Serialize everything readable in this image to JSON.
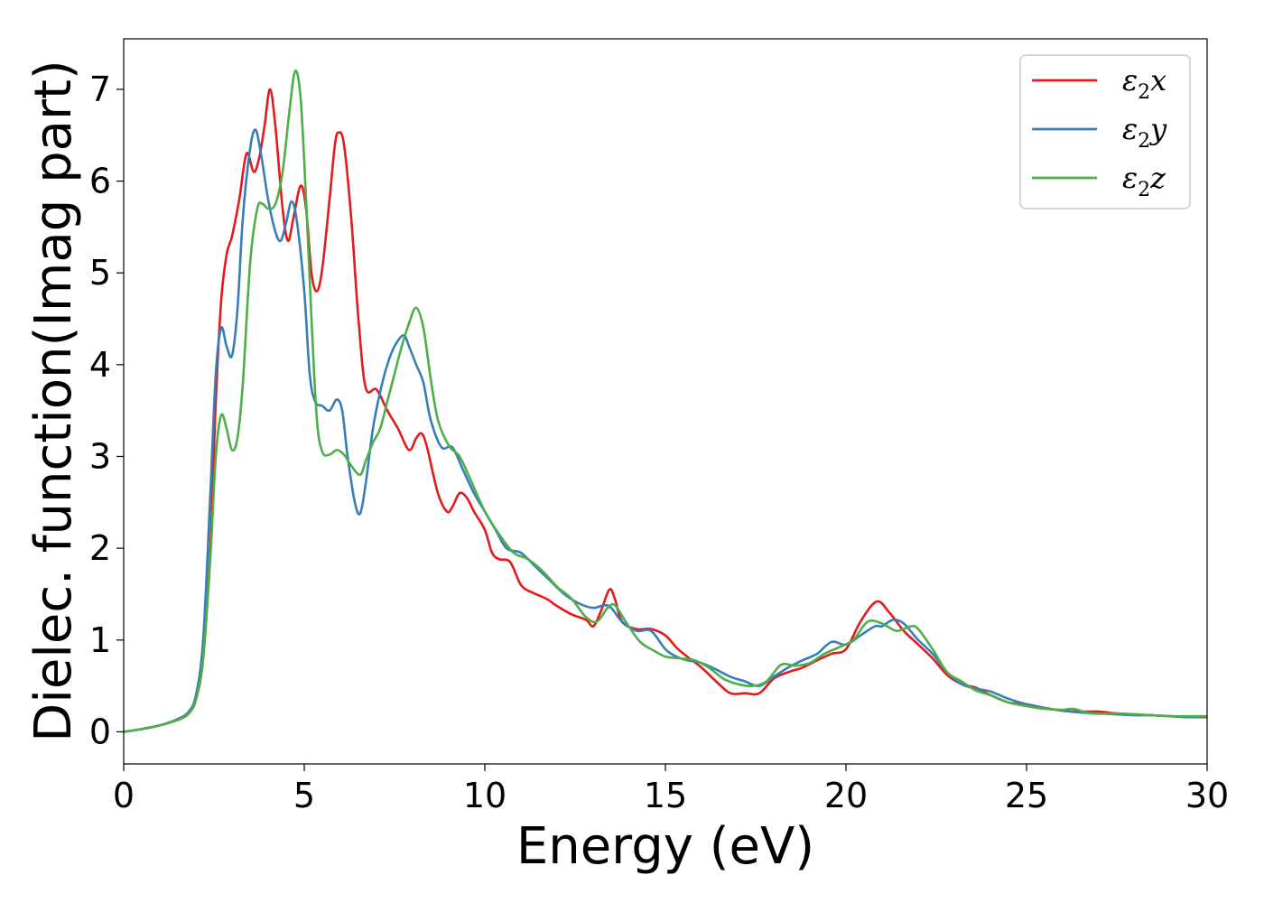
{
  "chart_data": {
    "type": "line",
    "title": "",
    "xlabel": "Energy (eV)",
    "ylabel": "Dielec. function(Imag part)",
    "xlim": [
      0,
      30
    ],
    "ylim": [
      -0.35,
      7.55
    ],
    "xticks": [
      0,
      5,
      10,
      15,
      20,
      25,
      30
    ],
    "yticks": [
      0,
      1,
      2,
      3,
      4,
      5,
      6,
      7
    ],
    "grid": false,
    "legend_position": "top-right",
    "series": [
      {
        "name": "ε₂x",
        "label_main": "ε",
        "label_sub": "2",
        "label_axis": "x",
        "color": "#e41a1c",
        "points": [
          [
            0,
            0
          ],
          [
            0.5,
            0.03
          ],
          [
            1.0,
            0.07
          ],
          [
            1.5,
            0.13
          ],
          [
            1.8,
            0.2
          ],
          [
            2.0,
            0.35
          ],
          [
            2.2,
            0.8
          ],
          [
            2.4,
            2.0
          ],
          [
            2.55,
            3.6
          ],
          [
            2.7,
            4.7
          ],
          [
            2.85,
            5.2
          ],
          [
            3.0,
            5.4
          ],
          [
            3.2,
            5.8
          ],
          [
            3.4,
            6.3
          ],
          [
            3.6,
            6.1
          ],
          [
            3.75,
            6.25
          ],
          [
            3.9,
            6.6
          ],
          [
            4.05,
            7.0
          ],
          [
            4.2,
            6.6
          ],
          [
            4.4,
            5.7
          ],
          [
            4.55,
            5.35
          ],
          [
            4.7,
            5.6
          ],
          [
            4.9,
            5.95
          ],
          [
            5.05,
            5.7
          ],
          [
            5.2,
            5.0
          ],
          [
            5.35,
            4.8
          ],
          [
            5.5,
            5.05
          ],
          [
            5.7,
            5.8
          ],
          [
            5.85,
            6.4
          ],
          [
            5.95,
            6.53
          ],
          [
            6.1,
            6.4
          ],
          [
            6.3,
            5.6
          ],
          [
            6.5,
            4.5
          ],
          [
            6.7,
            3.75
          ],
          [
            7.0,
            3.73
          ],
          [
            7.3,
            3.5
          ],
          [
            7.6,
            3.3
          ],
          [
            7.9,
            3.07
          ],
          [
            8.1,
            3.2
          ],
          [
            8.25,
            3.25
          ],
          [
            8.4,
            3.1
          ],
          [
            8.7,
            2.6
          ],
          [
            8.95,
            2.4
          ],
          [
            9.1,
            2.45
          ],
          [
            9.3,
            2.6
          ],
          [
            9.5,
            2.55
          ],
          [
            9.7,
            2.4
          ],
          [
            10.0,
            2.2
          ],
          [
            10.2,
            1.95
          ],
          [
            10.4,
            1.88
          ],
          [
            10.7,
            1.85
          ],
          [
            11.0,
            1.6
          ],
          [
            11.3,
            1.52
          ],
          [
            11.7,
            1.45
          ],
          [
            12.0,
            1.37
          ],
          [
            12.4,
            1.28
          ],
          [
            12.8,
            1.22
          ],
          [
            13.0,
            1.15
          ],
          [
            13.2,
            1.3
          ],
          [
            13.45,
            1.55
          ],
          [
            13.6,
            1.45
          ],
          [
            13.8,
            1.2
          ],
          [
            14.2,
            1.12
          ],
          [
            14.6,
            1.12
          ],
          [
            15.0,
            1.05
          ],
          [
            15.3,
            0.92
          ],
          [
            15.6,
            0.82
          ],
          [
            16.0,
            0.7
          ],
          [
            16.4,
            0.55
          ],
          [
            16.8,
            0.42
          ],
          [
            17.2,
            0.42
          ],
          [
            17.6,
            0.42
          ],
          [
            18.0,
            0.58
          ],
          [
            18.4,
            0.65
          ],
          [
            18.8,
            0.7
          ],
          [
            19.2,
            0.78
          ],
          [
            19.6,
            0.85
          ],
          [
            20.0,
            0.9
          ],
          [
            20.4,
            1.2
          ],
          [
            20.85,
            1.42
          ],
          [
            21.2,
            1.3
          ],
          [
            21.6,
            1.1
          ],
          [
            22.0,
            0.95
          ],
          [
            22.4,
            0.8
          ],
          [
            22.8,
            0.62
          ],
          [
            23.2,
            0.52
          ],
          [
            23.6,
            0.48
          ],
          [
            24.0,
            0.4
          ],
          [
            24.5,
            0.32
          ],
          [
            25.0,
            0.3
          ],
          [
            25.5,
            0.26
          ],
          [
            26.0,
            0.23
          ],
          [
            26.5,
            0.22
          ],
          [
            27.0,
            0.22
          ],
          [
            27.5,
            0.2
          ],
          [
            28.0,
            0.19
          ],
          [
            28.5,
            0.18
          ],
          [
            29.0,
            0.17
          ],
          [
            29.5,
            0.16
          ],
          [
            30.0,
            0.16
          ]
        ]
      },
      {
        "name": "ε₂y",
        "label_main": "ε",
        "label_sub": "2",
        "label_axis": "y",
        "color": "#377eb8",
        "points": [
          [
            0,
            0
          ],
          [
            0.5,
            0.03
          ],
          [
            1.0,
            0.07
          ],
          [
            1.5,
            0.14
          ],
          [
            1.8,
            0.22
          ],
          [
            2.0,
            0.4
          ],
          [
            2.2,
            1.0
          ],
          [
            2.4,
            2.6
          ],
          [
            2.55,
            3.9
          ],
          [
            2.7,
            4.4
          ],
          [
            2.85,
            4.2
          ],
          [
            3.0,
            4.1
          ],
          [
            3.15,
            4.6
          ],
          [
            3.3,
            5.6
          ],
          [
            3.5,
            6.35
          ],
          [
            3.65,
            6.56
          ],
          [
            3.8,
            6.3
          ],
          [
            4.0,
            5.8
          ],
          [
            4.2,
            5.45
          ],
          [
            4.35,
            5.35
          ],
          [
            4.5,
            5.55
          ],
          [
            4.65,
            5.78
          ],
          [
            4.8,
            5.55
          ],
          [
            5.0,
            4.8
          ],
          [
            5.15,
            3.9
          ],
          [
            5.3,
            3.6
          ],
          [
            5.5,
            3.55
          ],
          [
            5.7,
            3.5
          ],
          [
            5.9,
            3.62
          ],
          [
            6.05,
            3.5
          ],
          [
            6.2,
            3.0
          ],
          [
            6.4,
            2.5
          ],
          [
            6.55,
            2.38
          ],
          [
            6.7,
            2.7
          ],
          [
            6.9,
            3.3
          ],
          [
            7.1,
            3.7
          ],
          [
            7.3,
            4.0
          ],
          [
            7.5,
            4.2
          ],
          [
            7.75,
            4.32
          ],
          [
            7.9,
            4.2
          ],
          [
            8.1,
            4.0
          ],
          [
            8.3,
            3.8
          ],
          [
            8.5,
            3.4
          ],
          [
            8.8,
            3.1
          ],
          [
            9.1,
            3.1
          ],
          [
            9.4,
            2.85
          ],
          [
            9.7,
            2.6
          ],
          [
            10.0,
            2.4
          ],
          [
            10.3,
            2.2
          ],
          [
            10.6,
            2.0
          ],
          [
            11.0,
            1.95
          ],
          [
            11.4,
            1.8
          ],
          [
            11.8,
            1.65
          ],
          [
            12.2,
            1.5
          ],
          [
            12.6,
            1.4
          ],
          [
            13.0,
            1.35
          ],
          [
            13.3,
            1.38
          ],
          [
            13.5,
            1.35
          ],
          [
            13.8,
            1.2
          ],
          [
            14.2,
            1.1
          ],
          [
            14.6,
            1.1
          ],
          [
            15.0,
            0.9
          ],
          [
            15.3,
            0.82
          ],
          [
            15.6,
            0.78
          ],
          [
            16.0,
            0.75
          ],
          [
            16.4,
            0.68
          ],
          [
            16.8,
            0.6
          ],
          [
            17.2,
            0.55
          ],
          [
            17.6,
            0.5
          ],
          [
            18.0,
            0.6
          ],
          [
            18.4,
            0.7
          ],
          [
            18.8,
            0.78
          ],
          [
            19.2,
            0.85
          ],
          [
            19.6,
            0.98
          ],
          [
            20.0,
            0.95
          ],
          [
            20.4,
            1.05
          ],
          [
            20.8,
            1.15
          ],
          [
            21.0,
            1.15
          ],
          [
            21.3,
            1.22
          ],
          [
            21.6,
            1.18
          ],
          [
            22.0,
            1.0
          ],
          [
            22.4,
            0.85
          ],
          [
            22.8,
            0.65
          ],
          [
            23.2,
            0.52
          ],
          [
            23.6,
            0.47
          ],
          [
            24.0,
            0.44
          ],
          [
            24.5,
            0.36
          ],
          [
            25.0,
            0.3
          ],
          [
            25.5,
            0.26
          ],
          [
            26.0,
            0.23
          ],
          [
            26.5,
            0.21
          ],
          [
            27.0,
            0.2
          ],
          [
            27.5,
            0.19
          ],
          [
            28.0,
            0.18
          ],
          [
            28.5,
            0.18
          ],
          [
            29.0,
            0.17
          ],
          [
            29.5,
            0.16
          ],
          [
            30.0,
            0.17
          ]
        ]
      },
      {
        "name": "ε₂z",
        "label_main": "ε",
        "label_sub": "2",
        "label_axis": "z",
        "color": "#4daf4a",
        "points": [
          [
            0,
            0
          ],
          [
            0.5,
            0.03
          ],
          [
            1.0,
            0.07
          ],
          [
            1.5,
            0.13
          ],
          [
            1.8,
            0.2
          ],
          [
            2.0,
            0.35
          ],
          [
            2.2,
            0.8
          ],
          [
            2.4,
            1.9
          ],
          [
            2.55,
            3.0
          ],
          [
            2.7,
            3.45
          ],
          [
            2.85,
            3.3
          ],
          [
            3.0,
            3.07
          ],
          [
            3.15,
            3.2
          ],
          [
            3.3,
            3.8
          ],
          [
            3.5,
            5.1
          ],
          [
            3.7,
            5.7
          ],
          [
            3.85,
            5.75
          ],
          [
            4.0,
            5.7
          ],
          [
            4.2,
            5.75
          ],
          [
            4.4,
            6.1
          ],
          [
            4.6,
            6.8
          ],
          [
            4.75,
            7.2
          ],
          [
            4.9,
            6.9
          ],
          [
            5.05,
            5.8
          ],
          [
            5.2,
            4.5
          ],
          [
            5.35,
            3.4
          ],
          [
            5.5,
            3.05
          ],
          [
            5.7,
            3.02
          ],
          [
            5.9,
            3.07
          ],
          [
            6.1,
            3.02
          ],
          [
            6.3,
            2.9
          ],
          [
            6.55,
            2.8
          ],
          [
            6.7,
            2.95
          ],
          [
            6.9,
            3.15
          ],
          [
            7.1,
            3.3
          ],
          [
            7.3,
            3.6
          ],
          [
            7.5,
            3.9
          ],
          [
            7.7,
            4.2
          ],
          [
            7.9,
            4.45
          ],
          [
            8.1,
            4.62
          ],
          [
            8.3,
            4.4
          ],
          [
            8.5,
            3.85
          ],
          [
            8.7,
            3.4
          ],
          [
            9.0,
            3.12
          ],
          [
            9.3,
            3.0
          ],
          [
            9.6,
            2.75
          ],
          [
            10.0,
            2.4
          ],
          [
            10.4,
            2.15
          ],
          [
            10.8,
            1.95
          ],
          [
            11.2,
            1.88
          ],
          [
            11.6,
            1.75
          ],
          [
            12.0,
            1.58
          ],
          [
            12.4,
            1.45
          ],
          [
            12.8,
            1.25
          ],
          [
            13.1,
            1.2
          ],
          [
            13.4,
            1.35
          ],
          [
            13.6,
            1.38
          ],
          [
            13.9,
            1.2
          ],
          [
            14.3,
            0.98
          ],
          [
            14.7,
            0.88
          ],
          [
            15.0,
            0.82
          ],
          [
            15.4,
            0.8
          ],
          [
            15.8,
            0.78
          ],
          [
            16.2,
            0.7
          ],
          [
            16.6,
            0.58
          ],
          [
            17.0,
            0.52
          ],
          [
            17.4,
            0.5
          ],
          [
            17.8,
            0.55
          ],
          [
            18.2,
            0.73
          ],
          [
            18.6,
            0.72
          ],
          [
            19.0,
            0.75
          ],
          [
            19.4,
            0.85
          ],
          [
            19.8,
            0.92
          ],
          [
            20.2,
            1.0
          ],
          [
            20.6,
            1.2
          ],
          [
            21.0,
            1.18
          ],
          [
            21.4,
            1.1
          ],
          [
            21.8,
            1.15
          ],
          [
            22.0,
            1.12
          ],
          [
            22.4,
            0.9
          ],
          [
            22.8,
            0.65
          ],
          [
            23.2,
            0.55
          ],
          [
            23.6,
            0.45
          ],
          [
            24.0,
            0.4
          ],
          [
            24.5,
            0.32
          ],
          [
            25.0,
            0.28
          ],
          [
            25.5,
            0.25
          ],
          [
            26.0,
            0.24
          ],
          [
            26.3,
            0.25
          ],
          [
            26.8,
            0.2
          ],
          [
            27.5,
            0.2
          ],
          [
            28.0,
            0.19
          ],
          [
            28.5,
            0.18
          ],
          [
            29.0,
            0.17
          ],
          [
            29.5,
            0.17
          ],
          [
            30.0,
            0.17
          ]
        ]
      }
    ]
  }
}
